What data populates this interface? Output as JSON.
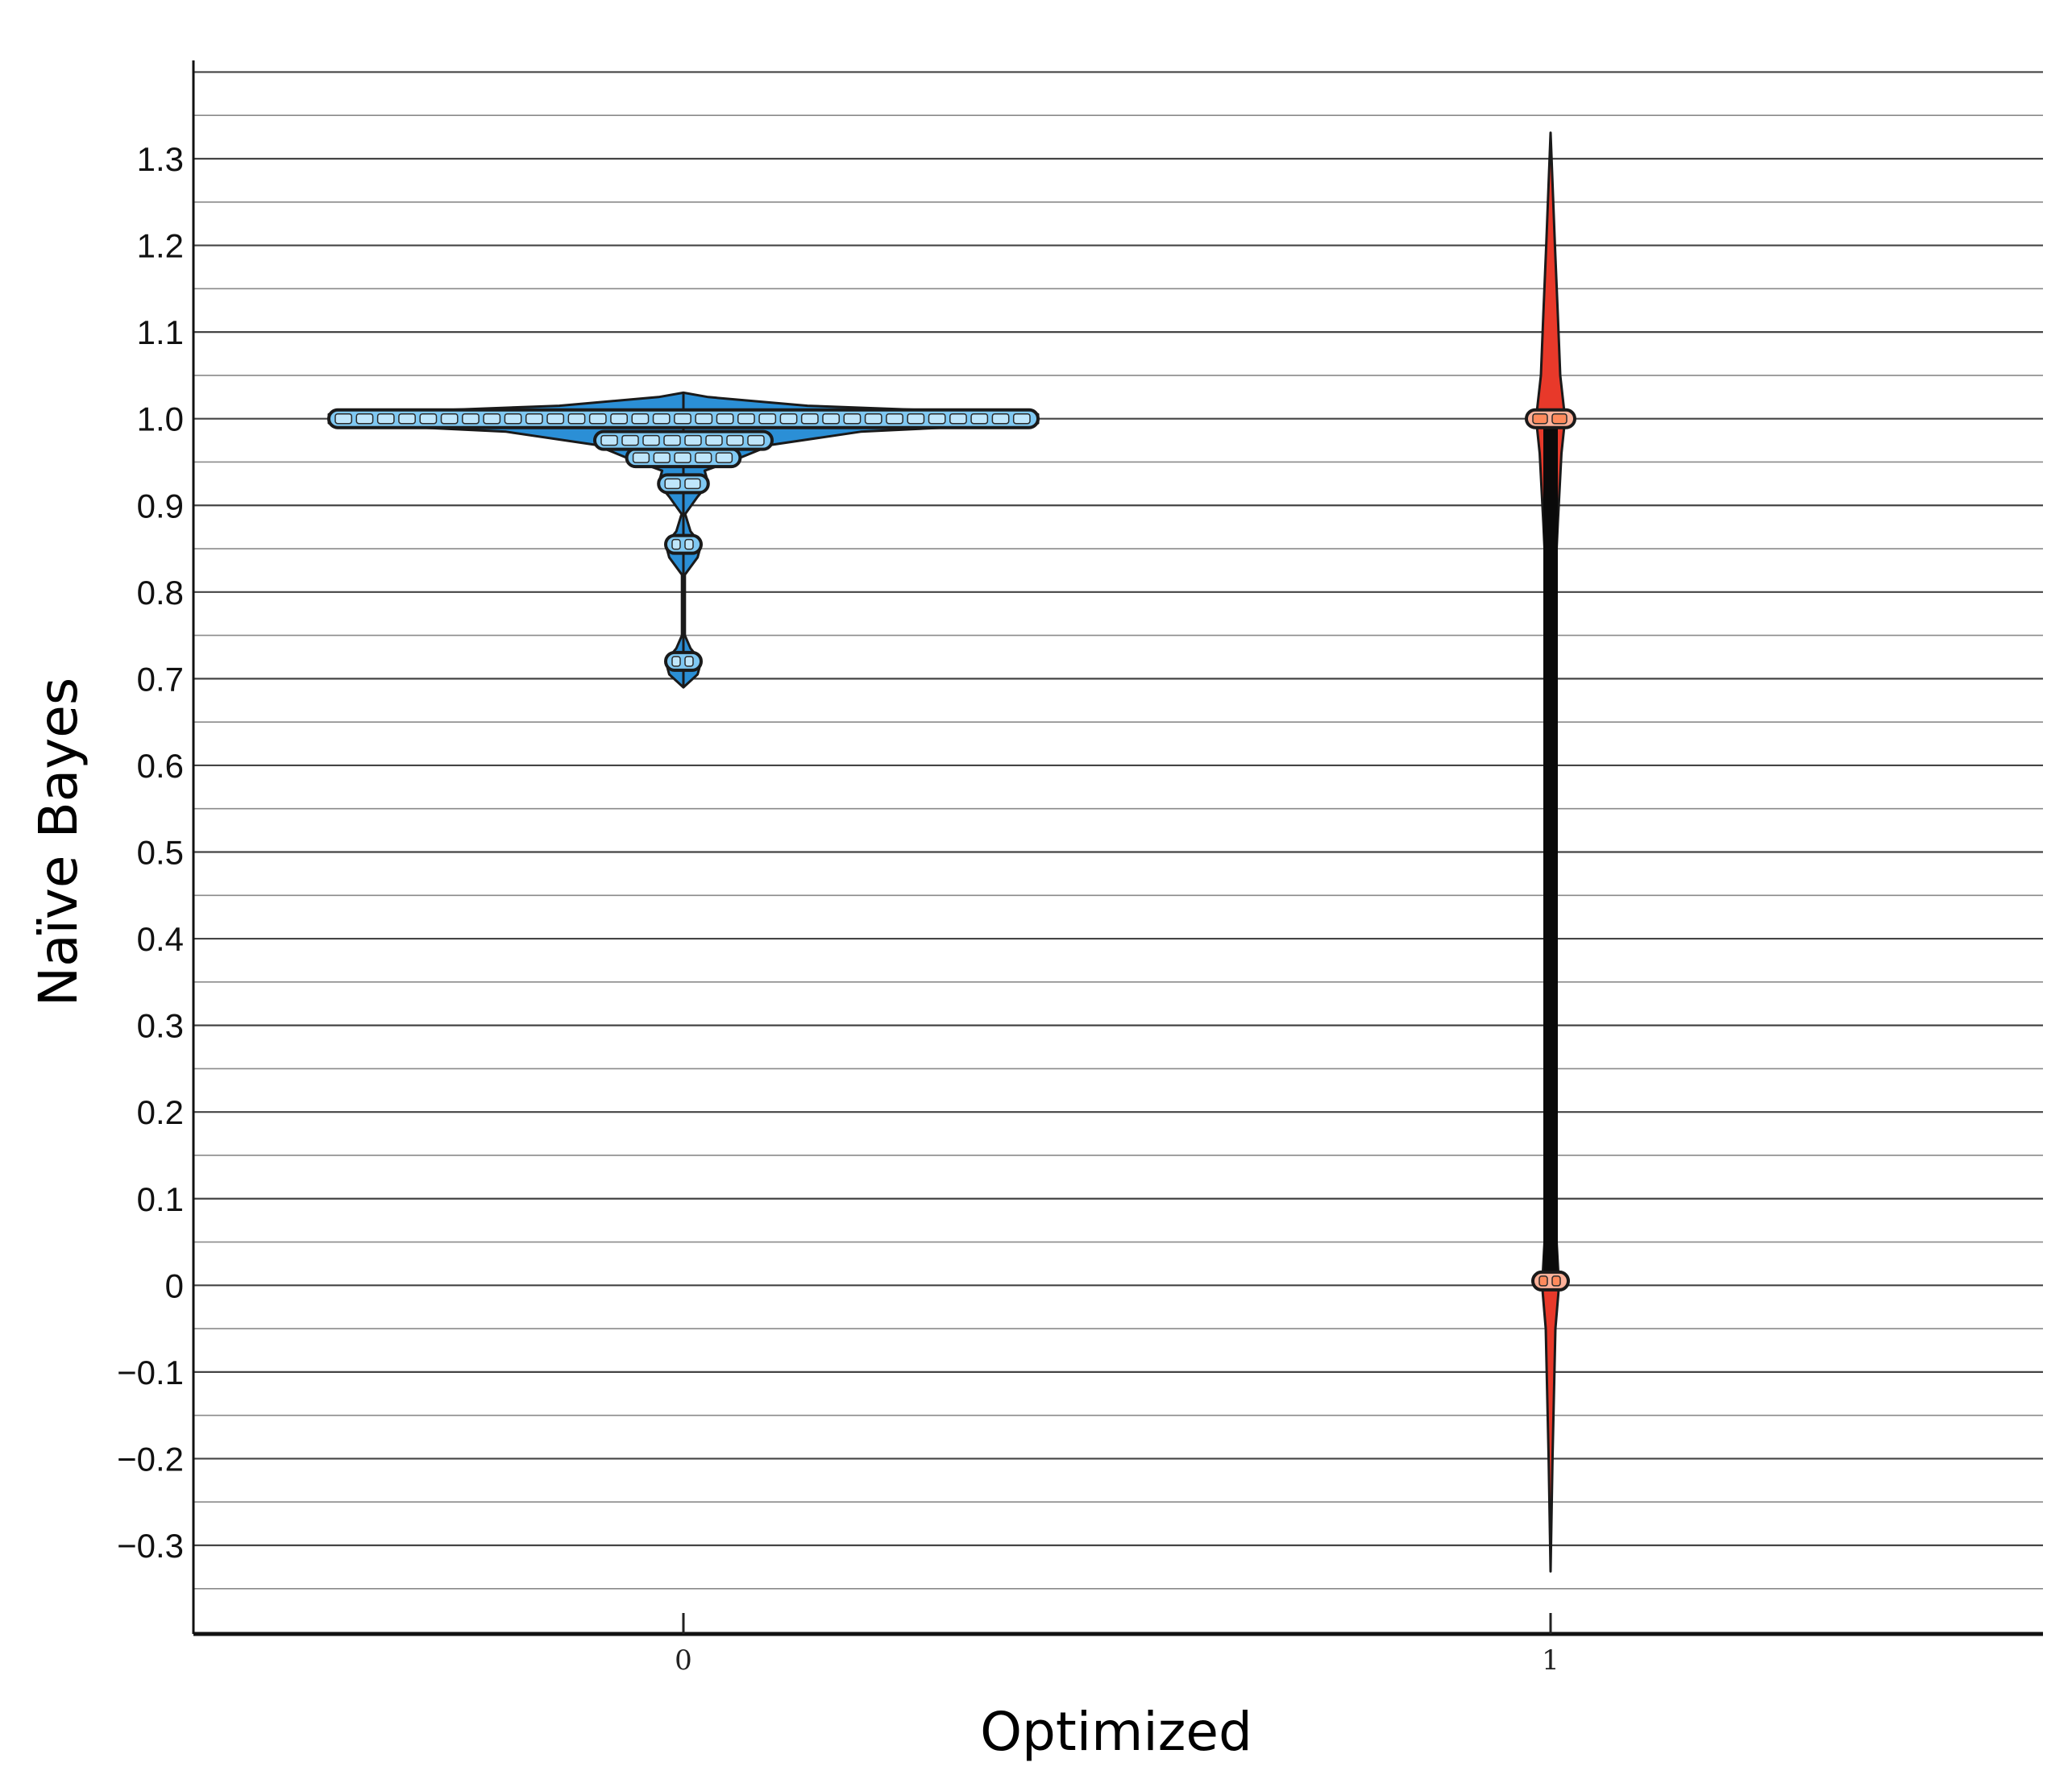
{
  "chart_data": {
    "type": "violin",
    "xlabel": "Optimized",
    "ylabel": "Naïve Bayes",
    "ylim": [
      -0.35,
      1.4
    ],
    "grid": true,
    "yticks": [
      {
        "value": 1.3,
        "label": "1.3"
      },
      {
        "value": 1.2,
        "label": "1.2"
      },
      {
        "value": 1.1,
        "label": "1.1"
      },
      {
        "value": 1.0,
        "label": "1.0"
      },
      {
        "value": 0.9,
        "label": "0.9"
      },
      {
        "value": 0.8,
        "label": "0.8"
      },
      {
        "value": 0.7,
        "label": "0.7"
      },
      {
        "value": 0.6,
        "label": "0.6"
      },
      {
        "value": 0.5,
        "label": "0.5"
      },
      {
        "value": 0.4,
        "label": "0.4"
      },
      {
        "value": 0.3,
        "label": "0.3"
      },
      {
        "value": 0.2,
        "label": "0.2"
      },
      {
        "value": 0.1,
        "label": "0.1"
      },
      {
        "value": 0.0,
        "label": "0"
      },
      {
        "value": -0.1,
        "label": "−0.1"
      },
      {
        "value": -0.2,
        "label": "−0.2"
      },
      {
        "value": -0.3,
        "label": "−0.3"
      }
    ],
    "categories": [
      "0",
      "1"
    ],
    "groups": [
      {
        "category": "0",
        "color": "#2b8fd6",
        "density": [
          {
            "y": 0.69,
            "w": 0.0
          },
          {
            "y": 0.705,
            "w": 0.04
          },
          {
            "y": 0.72,
            "w": 0.05
          },
          {
            "y": 0.735,
            "w": 0.02
          },
          {
            "y": 0.75,
            "w": 0.004
          },
          {
            "y": 0.82,
            "w": 0.004
          },
          {
            "y": 0.84,
            "w": 0.04
          },
          {
            "y": 0.855,
            "w": 0.05
          },
          {
            "y": 0.87,
            "w": 0.02
          },
          {
            "y": 0.89,
            "w": 0.005
          },
          {
            "y": 0.91,
            "w": 0.04
          },
          {
            "y": 0.925,
            "w": 0.07
          },
          {
            "y": 0.94,
            "w": 0.06
          },
          {
            "y": 0.955,
            "w": 0.16
          },
          {
            "y": 0.97,
            "w": 0.25
          },
          {
            "y": 0.985,
            "w": 0.5
          },
          {
            "y": 0.995,
            "w": 1.0
          },
          {
            "y": 1.005,
            "w": 1.0
          },
          {
            "y": 1.015,
            "w": 0.35
          },
          {
            "y": 1.025,
            "w": 0.07
          },
          {
            "y": 1.03,
            "w": 0.0
          }
        ],
        "clusters": [
          {
            "y": 0.72,
            "w": 0.05
          },
          {
            "y": 0.855,
            "w": 0.05
          },
          {
            "y": 0.925,
            "w": 0.07
          },
          {
            "y": 0.955,
            "w": 0.16
          },
          {
            "y": 0.975,
            "w": 0.25
          },
          {
            "y": 1.0,
            "w": 1.0
          }
        ]
      },
      {
        "category": "1",
        "color": "#e8392a",
        "density": [
          {
            "y": -0.33,
            "w": 0.0
          },
          {
            "y": -0.2,
            "w": 0.008
          },
          {
            "y": -0.05,
            "w": 0.02
          },
          {
            "y": 0.0,
            "w": 0.035
          },
          {
            "y": 0.05,
            "w": 0.025
          },
          {
            "y": 0.15,
            "w": 0.008
          },
          {
            "y": 0.3,
            "w": 0.004
          },
          {
            "y": 0.6,
            "w": 0.004
          },
          {
            "y": 0.76,
            "w": 0.01
          },
          {
            "y": 0.88,
            "w": 0.03
          },
          {
            "y": 0.96,
            "w": 0.045
          },
          {
            "y": 1.0,
            "w": 0.06
          },
          {
            "y": 1.05,
            "w": 0.04
          },
          {
            "y": 1.12,
            "w": 0.03
          },
          {
            "y": 1.2,
            "w": 0.018
          },
          {
            "y": 1.33,
            "w": 0.0
          }
        ],
        "box": {
          "q1": 0.0,
          "q3": 1.0
        },
        "clusters": [
          {
            "y": 1.0,
            "w": 0.1
          },
          {
            "y": 0.005,
            "w": 0.06
          }
        ]
      }
    ]
  }
}
